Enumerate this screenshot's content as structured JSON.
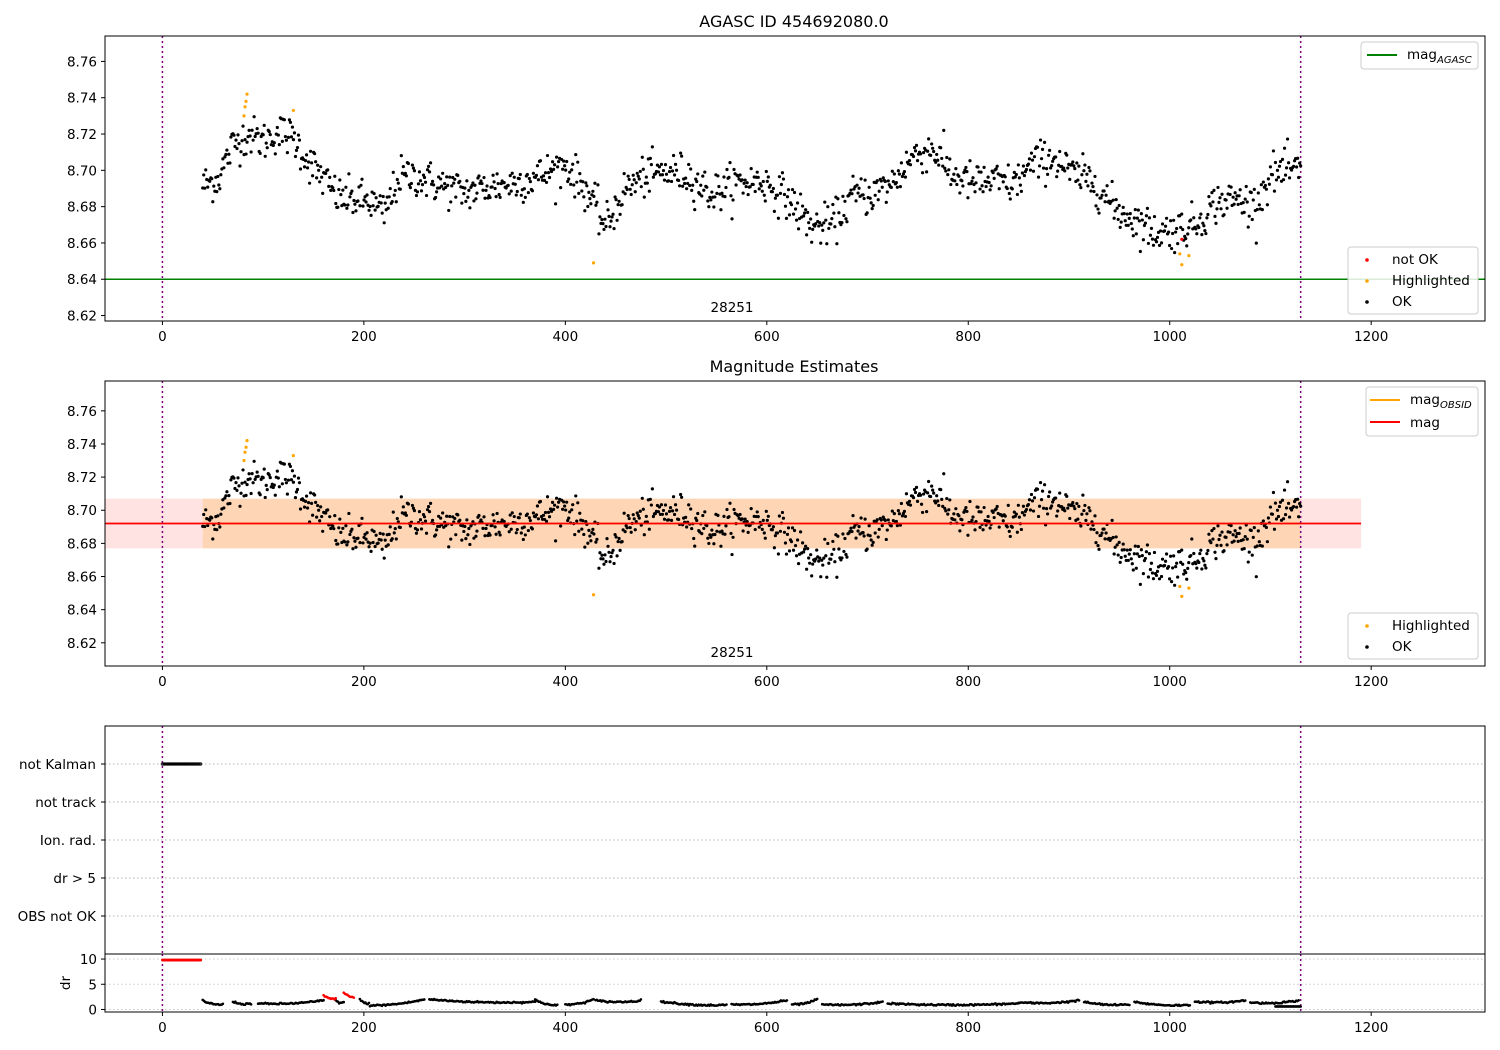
{
  "chart_data": [
    {
      "type": "scatter",
      "title": "AGASC ID 454692080.0",
      "annotation": "28251",
      "xlim": [
        -57,
        1313
      ],
      "ylim": [
        8.617,
        8.774
      ],
      "xticks": [
        0,
        200,
        400,
        600,
        800,
        1000,
        1200
      ],
      "xtick_labels": [
        "0",
        "200",
        "400",
        "600",
        "800",
        "1000",
        "1200"
      ],
      "yticks": [
        8.62,
        8.64,
        8.66,
        8.68,
        8.7,
        8.72,
        8.74,
        8.76
      ],
      "ytick_labels": [
        "8.62",
        "8.64",
        "8.66",
        "8.68",
        "8.70",
        "8.72",
        "8.74",
        "8.76"
      ],
      "vlines": [
        0,
        1130
      ],
      "mag_agasc": 8.64,
      "legend_upper": [
        {
          "name_main": "mag",
          "name_sub": "AGASC",
          "color": "#008000",
          "kind": "line"
        }
      ],
      "legend_lower": [
        {
          "name": "not OK",
          "color": "#ff0000",
          "kind": "dot"
        },
        {
          "name": "Highlighted",
          "color": "#ffa500",
          "kind": "dot"
        },
        {
          "name": "OK",
          "color": "#000000",
          "kind": "dot"
        }
      ],
      "series_trend": {
        "x": [
          40,
          55,
          70,
          85,
          100,
          115,
          130,
          145,
          160,
          175,
          190,
          205,
          220,
          235,
          250,
          275,
          300,
          325,
          350,
          375,
          400,
          420,
          440,
          460,
          480,
          500,
          520,
          545,
          570,
          595,
          620,
          645,
          665,
          685,
          705,
          725,
          745,
          765,
          785,
          805,
          825,
          845,
          865,
          885,
          905,
          925,
          945,
          965,
          985,
          1005,
          1025,
          1045,
          1065,
          1085,
          1100,
          1115,
          1130
        ],
        "y": [
          8.692,
          8.695,
          8.714,
          8.72,
          8.716,
          8.721,
          8.718,
          8.705,
          8.695,
          8.685,
          8.684,
          8.683,
          8.676,
          8.696,
          8.697,
          8.692,
          8.688,
          8.691,
          8.693,
          8.697,
          8.703,
          8.69,
          8.669,
          8.69,
          8.697,
          8.699,
          8.698,
          8.687,
          8.693,
          8.694,
          8.685,
          8.669,
          8.67,
          8.686,
          8.687,
          8.693,
          8.708,
          8.712,
          8.697,
          8.693,
          8.694,
          8.692,
          8.704,
          8.707,
          8.697,
          8.694,
          8.679,
          8.673,
          8.666,
          8.667,
          8.67,
          8.682,
          8.684,
          8.681,
          8.697,
          8.7,
          8.699
        ],
        "spread": 0.0055,
        "n_points": 1090,
        "color": "#000000"
      },
      "highlighted": {
        "x": [
          81,
          82,
          83,
          84,
          130,
          428,
          1010,
          1012,
          1019
        ],
        "y": [
          8.73,
          8.735,
          8.738,
          8.742,
          8.733,
          8.649,
          8.654,
          8.648,
          8.653
        ]
      },
      "not_ok": {
        "x": [
          1012
        ],
        "y": [
          8.662
        ]
      }
    },
    {
      "type": "scatter",
      "title": "Magnitude Estimates",
      "annotation": "28251",
      "xlim": [
        -57,
        1313
      ],
      "ylim": [
        8.606,
        8.778
      ],
      "xticks": [
        0,
        200,
        400,
        600,
        800,
        1000,
        1200
      ],
      "xtick_labels": [
        "0",
        "200",
        "400",
        "600",
        "800",
        "1000",
        "1200"
      ],
      "yticks": [
        8.62,
        8.64,
        8.66,
        8.68,
        8.7,
        8.72,
        8.74,
        8.76
      ],
      "ytick_labels": [
        "8.62",
        "8.64",
        "8.66",
        "8.68",
        "8.70",
        "8.72",
        "8.74",
        "8.76"
      ],
      "vlines": [
        0,
        1130
      ],
      "mag": 8.692,
      "band_pink": {
        "x": [
          -57,
          1190
        ],
        "y": [
          8.677,
          8.707
        ]
      },
      "band_orange": {
        "x": [
          40,
          1130
        ],
        "y": [
          8.677,
          8.707
        ]
      },
      "legend_upper": [
        {
          "name_main": "mag",
          "name_sub": "OBSID",
          "color": "#ffa500",
          "kind": "line"
        },
        {
          "name_main": "mag",
          "name_sub": "",
          "color": "#ff0000",
          "kind": "line"
        }
      ],
      "legend_lower": [
        {
          "name": "Highlighted",
          "color": "#ffa500",
          "kind": "dot"
        },
        {
          "name": "OK",
          "color": "#000000",
          "kind": "dot"
        }
      ]
    },
    {
      "type": "scatter",
      "xlim": [
        -57,
        1313
      ],
      "flag_rows": [
        "not Kalman",
        "not track",
        "Ion. rad.",
        "dr > 5",
        "OBS not OK"
      ],
      "not_kalman_x": [
        0,
        38
      ],
      "vlines": [
        0,
        1130
      ]
    },
    {
      "type": "scatter",
      "ylabel": "dr",
      "xlim": [
        -57,
        1313
      ],
      "ylim": [
        -0.5,
        11
      ],
      "yticks": [
        0,
        5,
        10
      ],
      "ytick_labels": [
        "0",
        "5",
        "10"
      ],
      "xticks": [
        0,
        200,
        400,
        600,
        800,
        1000,
        1200
      ],
      "xtick_labels": [
        "0",
        "200",
        "400",
        "600",
        "800",
        "1000",
        "1200"
      ],
      "vlines": [
        0,
        1130
      ],
      "dr_clipped": {
        "x": [
          0,
          38
        ],
        "y": 9.8,
        "color": "#ff0000"
      },
      "dr_red": [
        {
          "x": [
            160,
            172
          ],
          "y": [
            2.8,
            2.2
          ]
        },
        {
          "x": [
            180,
            190
          ],
          "y": [
            3.4,
            2.5
          ]
        }
      ],
      "dr_segments": [
        {
          "x": [
            40,
            60
          ],
          "y": [
            1.8,
            1.0
          ]
        },
        {
          "x": [
            70,
            88
          ],
          "y": [
            1.6,
            1.2
          ]
        },
        {
          "x": [
            95,
            160
          ],
          "y": [
            1.2,
            1.8
          ]
        },
        {
          "x": [
            172,
            180
          ],
          "y": [
            1.8,
            1.5
          ]
        },
        {
          "x": [
            196,
            205
          ],
          "y": [
            2.0,
            1.2
          ]
        },
        {
          "x": [
            206,
            260
          ],
          "y": [
            0.8,
            2.0
          ]
        },
        {
          "x": [
            265,
            370
          ],
          "y": [
            2.0,
            1.5
          ]
        },
        {
          "x": [
            370,
            392
          ],
          "y": [
            2.0,
            0.8
          ]
        },
        {
          "x": [
            400,
            428
          ],
          "y": [
            1.0,
            2.0
          ]
        },
        {
          "x": [
            430,
            475
          ],
          "y": [
            1.8,
            1.8
          ]
        },
        {
          "x": [
            495,
            560
          ],
          "y": [
            1.6,
            0.9
          ]
        },
        {
          "x": [
            565,
            620
          ],
          "y": [
            1.0,
            1.8
          ]
        },
        {
          "x": [
            625,
            650
          ],
          "y": [
            1.0,
            2.0
          ]
        },
        {
          "x": [
            655,
            715
          ],
          "y": [
            1.0,
            1.5
          ]
        },
        {
          "x": [
            720,
            850
          ],
          "y": [
            1.2,
            1.2
          ]
        },
        {
          "x": [
            850,
            910
          ],
          "y": [
            1.4,
            1.8
          ]
        },
        {
          "x": [
            915,
            960
          ],
          "y": [
            1.5,
            1.0
          ]
        },
        {
          "x": [
            965,
            1020
          ],
          "y": [
            1.5,
            0.9
          ]
        },
        {
          "x": [
            1025,
            1075
          ],
          "y": [
            1.6,
            1.8
          ]
        },
        {
          "x": [
            1080,
            1128
          ],
          "y": [
            1.4,
            1.8
          ]
        }
      ],
      "dr_tail": {
        "x": [
          1105,
          1130
        ],
        "y": 0.6
      }
    }
  ]
}
